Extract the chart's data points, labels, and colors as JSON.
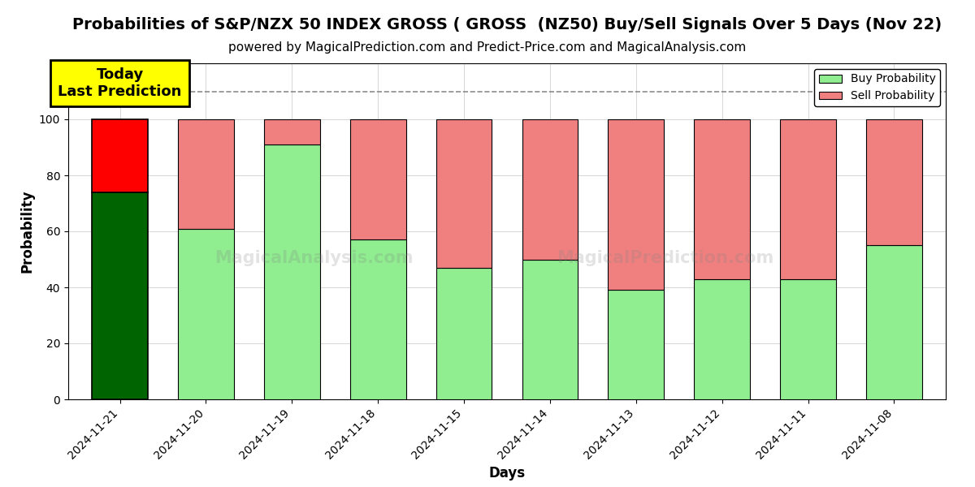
{
  "title": "Probabilities of S&P/NZX 50 INDEX GROSS ( GROSS  (NZ50) Buy/Sell Signals Over 5 Days (Nov 22)",
  "subtitle": "powered by MagicalPrediction.com and Predict-Price.com and MagicalAnalysis.com",
  "xlabel": "Days",
  "ylabel": "Probability",
  "dates": [
    "2024-11-21",
    "2024-11-20",
    "2024-11-19",
    "2024-11-18",
    "2024-11-15",
    "2024-11-14",
    "2024-11-13",
    "2024-11-12",
    "2024-11-11",
    "2024-11-08"
  ],
  "buy_values": [
    74,
    61,
    91,
    57,
    47,
    50,
    39,
    43,
    43,
    55
  ],
  "sell_values": [
    26,
    39,
    9,
    43,
    53,
    50,
    61,
    57,
    57,
    45
  ],
  "today_buy_color": "#006400",
  "today_sell_color": "#FF0000",
  "buy_color": "#90EE90",
  "sell_color": "#F08080",
  "today_index": 0,
  "ylim": [
    0,
    120
  ],
  "yticks": [
    0,
    20,
    40,
    60,
    80,
    100
  ],
  "dashed_line_y": 110,
  "annotation_text": "Today\nLast Prediction",
  "annotation_bg_color": "#FFFF00",
  "watermark_left": "MagicalAnalysis.com",
  "watermark_right": "MagicalPrediction.com",
  "legend_buy_label": "Buy Probability",
  "legend_sell_label": "Sell Probability",
  "background_color": "#FFFFFF",
  "grid_color": "#CCCCCC",
  "bar_edge_color": "#000000",
  "bar_width": 0.65,
  "title_fontsize": 14,
  "subtitle_fontsize": 11,
  "axis_label_fontsize": 12,
  "tick_fontsize": 10
}
